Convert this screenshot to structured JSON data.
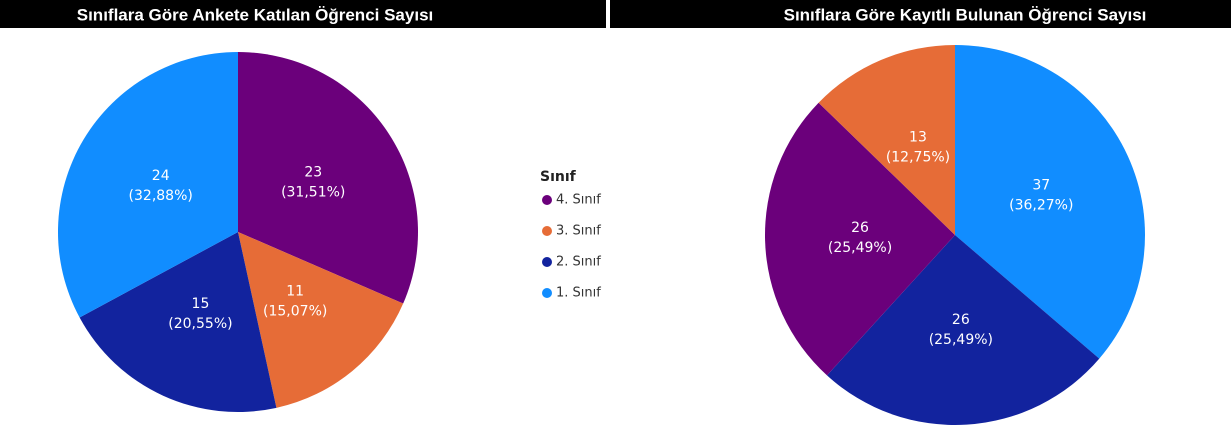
{
  "chart_data": [
    {
      "type": "pie",
      "title": "Sınıflara Göre Ankete Katılan Öğrenci Sayısı",
      "categories": [
        "4. Sınıf",
        "3. Sınıf",
        "2. Sınıf",
        "1. Sınıf"
      ],
      "values": [
        23,
        11,
        15,
        24
      ],
      "percent_labels": [
        "(31,51%)",
        "(15,07%)",
        "(20,55%)",
        "(32,88%)"
      ],
      "colors": [
        "#6b007b",
        "#e66c37",
        "#12239e",
        "#118dff"
      ],
      "legend_title": "Sınıf"
    },
    {
      "type": "pie",
      "title": "Sınıflara Göre Kayıtlı Bulunan Öğrenci Sayısı",
      "categories": [
        "1. Sınıf",
        "2. Sınıf",
        "4. Sınıf",
        "3. Sınıf"
      ],
      "values": [
        37,
        26,
        26,
        13
      ],
      "percent_labels": [
        "(36,27%)",
        "(25,49%)",
        "(25,49%)",
        "(12,75%)"
      ],
      "colors": [
        "#118dff",
        "#12239e",
        "#6b007b",
        "#e66c37"
      ]
    }
  ]
}
